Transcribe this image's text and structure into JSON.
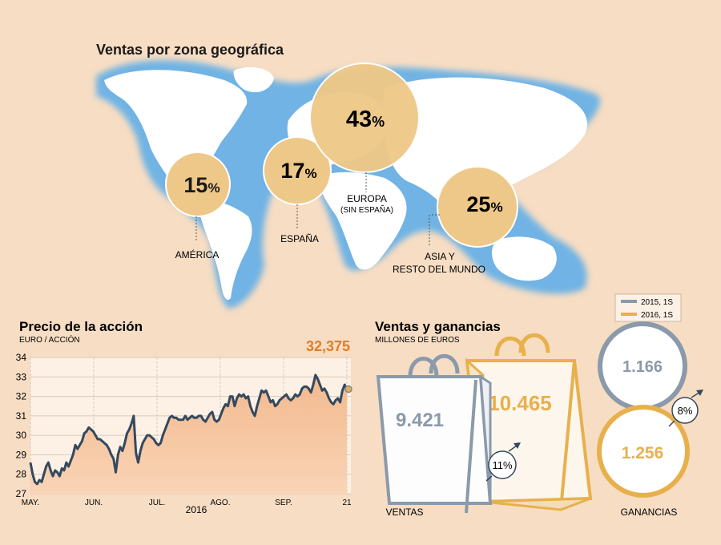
{
  "map_section": {
    "title": "Ventas por zona geográfica",
    "zones": [
      {
        "value": "15",
        "unit": "%",
        "label": "AMÉRICA"
      },
      {
        "value": "17",
        "unit": "%",
        "label": "ESPAÑA"
      },
      {
        "value": "43",
        "unit": "%",
        "label": "EUROPA",
        "label2": "(SIN ESPAÑA)"
      },
      {
        "value": "25",
        "unit": "%",
        "label": "ASIA Y",
        "label2": "RESTO DEL MUNDO"
      }
    ]
  },
  "stock_section": {
    "title": "Precio de la acción",
    "unit_label": "EURO / ACCIÓN",
    "last_value_label": "32,375",
    "year_label": "2016"
  },
  "sales_section": {
    "title": "Ventas y ganancias",
    "unit_label": "MILLONES DE EUROS",
    "legend": [
      {
        "label": "2015, 1S",
        "color": "#8a9aab"
      },
      {
        "label": "2016, 1S",
        "color": "#e8b04c"
      }
    ],
    "ventas": {
      "label": "VENTAS",
      "value_2015": "9.421",
      "value_2016": "10.465",
      "growth": "11%"
    },
    "ganancias": {
      "label": "GANANCIAS",
      "value_2015": "1.166",
      "value_2016": "1.256",
      "growth": "8%"
    }
  },
  "colors": {
    "background": "#f7ddc3",
    "ocean": "#6fb3e4",
    "bubble": "#eec888",
    "line": "#34495e",
    "area": "#f1b488",
    "accent": "#e07d28",
    "grey": "#8a9aab",
    "gold": "#e8b04c"
  },
  "chart_data": [
    {
      "type": "bubble",
      "title": "Ventas por zona geográfica",
      "categories": [
        "AMÉRICA",
        "ESPAÑA",
        "EUROPA (SIN ESPAÑA)",
        "ASIA Y RESTO DEL MUNDO"
      ],
      "values": [
        15,
        17,
        43,
        25
      ]
    },
    {
      "type": "area",
      "title": "Precio de la acción",
      "ylabel": "EURO / ACCIÓN",
      "ylim": [
        27,
        34
      ],
      "yticks": [
        27,
        28,
        29,
        30,
        31,
        32,
        33,
        34
      ],
      "xticks": [
        "MAY.",
        "JUN.",
        "JUL.",
        "AGO.",
        "SEP.",
        "21"
      ],
      "xlabel": "2016",
      "grid": true,
      "series": [
        {
          "values": [
            28.6,
            28.0,
            27.6,
            27.5,
            27.7,
            27.6,
            28.0,
            28.4,
            28.6,
            28.2,
            27.9,
            28.2,
            28.1,
            27.9,
            28.3,
            28.2,
            28.6,
            28.4,
            28.7,
            29.0,
            29.5,
            29.3,
            29.5,
            29.7,
            30.1,
            30.2,
            30.4,
            30.3,
            30.2,
            30.0,
            29.8,
            29.8,
            29.7,
            29.6,
            29.5,
            29.3,
            29.0,
            28.8,
            28.1,
            29.0,
            29.4,
            29.2,
            29.6,
            30.1,
            30.3,
            30.6,
            31.0,
            29.1,
            28.6,
            29.2,
            29.6,
            29.8,
            30.0,
            30.0,
            29.9,
            29.8,
            29.6,
            29.5,
            29.6,
            30.0,
            30.3,
            30.6,
            30.9,
            31.0,
            30.9,
            30.9,
            30.8,
            30.8,
            30.8,
            31.0,
            30.8,
            30.9,
            31.0,
            30.9,
            30.9,
            31.0,
            31.0,
            30.8,
            30.7,
            30.9,
            31.1,
            31.2,
            30.8,
            30.7,
            30.8,
            31.1,
            31.4,
            31.6,
            31.5,
            32.0,
            32.0,
            31.5,
            31.9,
            32.1,
            32.0,
            32.1,
            31.9,
            32.0,
            31.5,
            31.2,
            31.0,
            31.5,
            31.9,
            32.3,
            32.2,
            32.3,
            32.0,
            31.7,
            31.8,
            31.5,
            31.6,
            31.8,
            31.9,
            32.0,
            32.1,
            31.9,
            31.8,
            31.9,
            32.1,
            32.0,
            32.1,
            32.4,
            32.5,
            32.5,
            32.4,
            32.2,
            32.6,
            33.1,
            32.9,
            32.6,
            32.3,
            32.4,
            32.2,
            31.9,
            31.7,
            31.6,
            31.8,
            31.9,
            31.7,
            32.3,
            32.6,
            32.375
          ]
        },
        {
          "name": "32,375",
          "last_value": 32.375
        }
      ]
    },
    {
      "type": "bar",
      "title": "Ventas y ganancias",
      "ylabel": "MILLONES DE EUROS",
      "categories": [
        "VENTAS",
        "GANANCIAS"
      ],
      "series": [
        {
          "name": "2015, 1S",
          "values": [
            9421,
            1166
          ]
        },
        {
          "name": "2016, 1S",
          "values": [
            10465,
            1256
          ]
        }
      ],
      "annotations": [
        "11%",
        "8%"
      ]
    }
  ]
}
